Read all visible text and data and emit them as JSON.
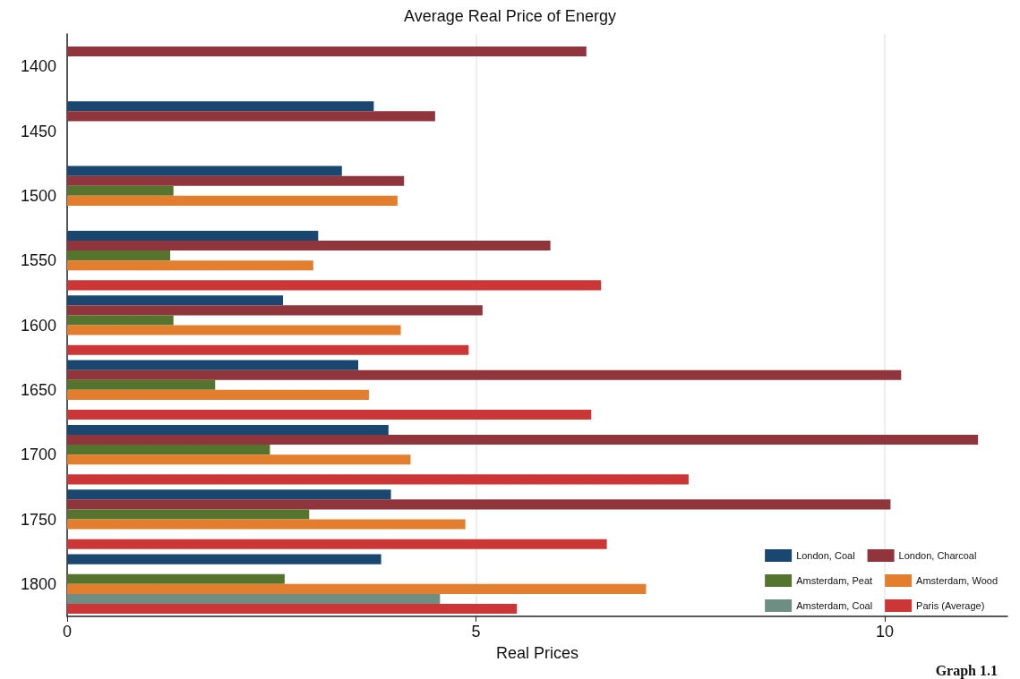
{
  "chart_data": {
    "type": "bar",
    "orientation": "horizontal",
    "title": "Average Real Price of Energy",
    "xlabel": "Real Prices",
    "categories": [
      "1400",
      "1450",
      "1500",
      "1550",
      "1600",
      "1650",
      "1700",
      "1750",
      "1800"
    ],
    "series": [
      {
        "name": "London, Coal",
        "color": "#1a476f",
        "values": [
          null,
          3.75,
          3.36,
          3.07,
          2.64,
          3.56,
          3.93,
          3.96,
          3.84
        ]
      },
      {
        "name": "London, Charcoal",
        "color": "#90353b",
        "values": [
          6.35,
          4.5,
          4.12,
          5.91,
          5.08,
          10.2,
          11.14,
          10.07,
          null
        ]
      },
      {
        "name": "Amsterdam, Peat",
        "color": "#55752f",
        "values": [
          null,
          null,
          1.3,
          1.26,
          1.3,
          1.81,
          2.48,
          2.96,
          2.66
        ]
      },
      {
        "name": "Amsterdam, Wood",
        "color": "#e37e2e",
        "values": [
          null,
          null,
          4.04,
          3.01,
          4.08,
          3.69,
          4.2,
          4.87,
          7.08
        ]
      },
      {
        "name": "Amsterdam, Coal",
        "color": "#6e8e84",
        "values": [
          null,
          null,
          null,
          null,
          null,
          null,
          null,
          null,
          4.56
        ]
      },
      {
        "name": "Paris (Average)",
        "color": "#cd3636",
        "values": [
          null,
          null,
          null,
          6.53,
          4.91,
          6.41,
          7.6,
          6.6,
          5.5
        ]
      }
    ],
    "xlim": [
      0,
      11.5
    ],
    "xticks": [
      0,
      5,
      10
    ],
    "grid": "x",
    "legend": "bottom right",
    "annotations": [
      "Graph 1.1"
    ]
  }
}
